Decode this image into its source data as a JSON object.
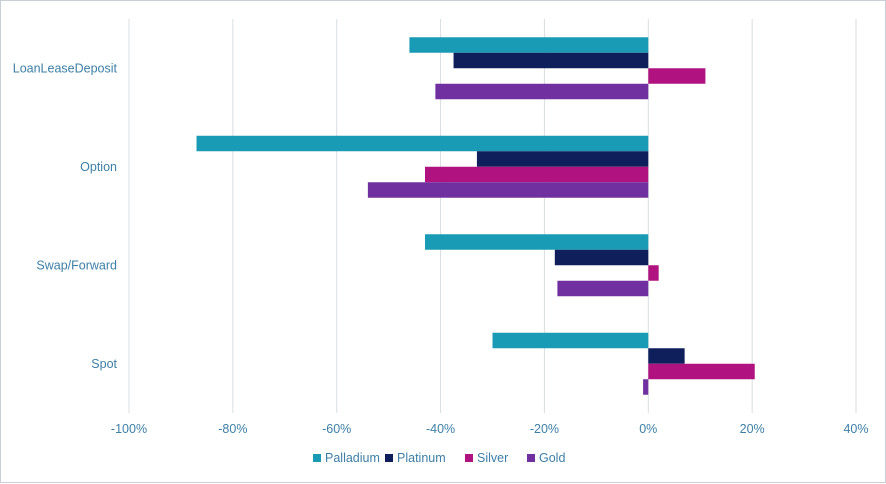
{
  "chart_data": {
    "type": "bar",
    "orientation": "horizontal",
    "categories": [
      "LoanLeaseDeposit",
      "Option",
      "Swap/Forward",
      "Spot"
    ],
    "series": [
      {
        "name": "Palladium",
        "color": "#1a9bb5",
        "values": [
          -46,
          -87,
          -43,
          -30
        ]
      },
      {
        "name": "Platinum",
        "color": "#0f1f5c",
        "values": [
          -37.5,
          -33,
          -18,
          7
        ]
      },
      {
        "name": "Silver",
        "color": "#b0127f",
        "values": [
          11,
          -43,
          2,
          20.5
        ]
      },
      {
        "name": "Gold",
        "color": "#7030a0",
        "values": [
          -41,
          -54,
          -17.5,
          -1
        ]
      }
    ],
    "xlim": [
      -100,
      40
    ],
    "xticks": [
      -100,
      -80,
      -60,
      -40,
      -20,
      0,
      20,
      40
    ],
    "xtick_labels": [
      "-100%",
      "-80%",
      "-60%",
      "-40%",
      "-20%",
      "0%",
      "20%",
      "40%"
    ],
    "grid": true,
    "legend_position": "bottom"
  }
}
